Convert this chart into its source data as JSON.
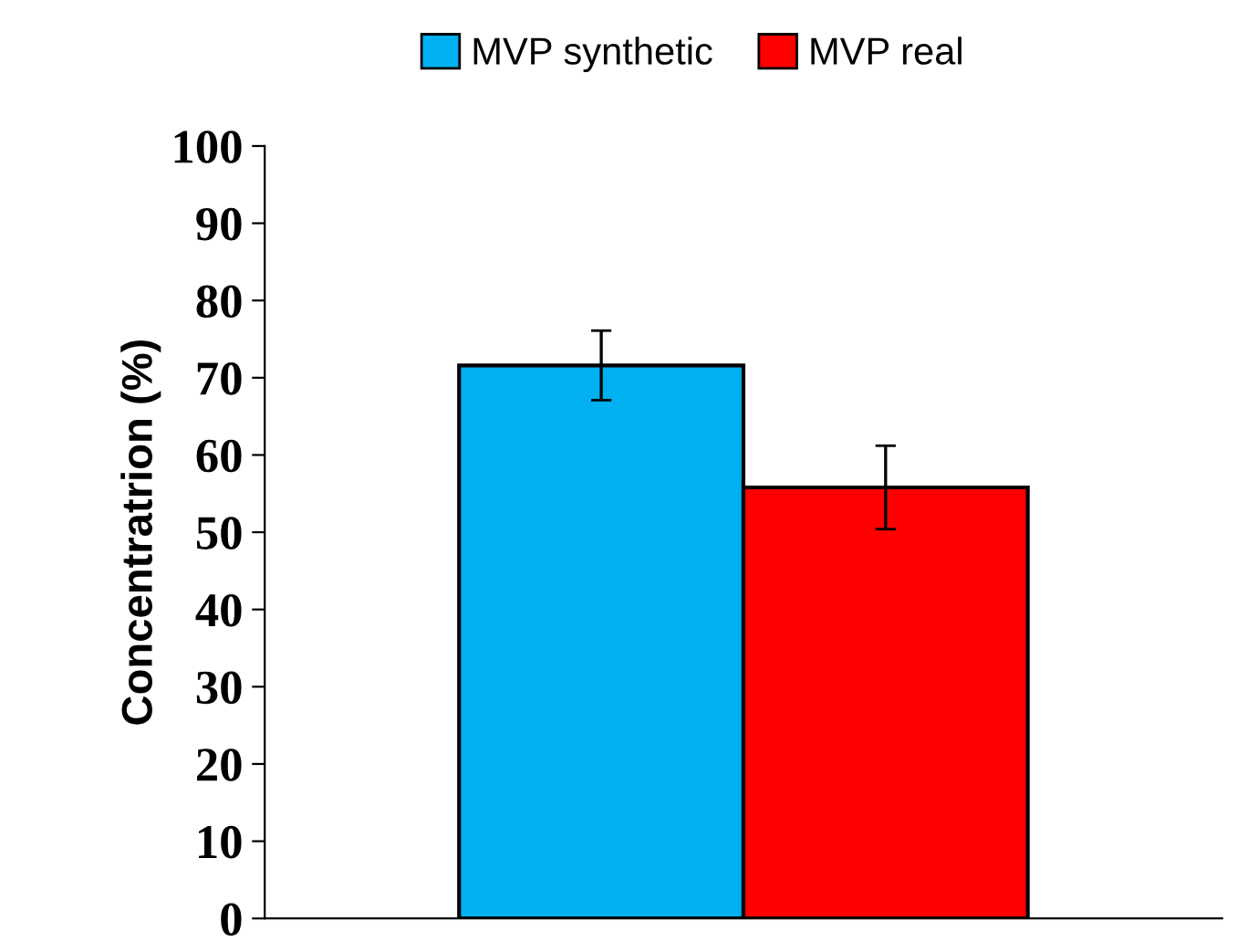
{
  "chart_data": {
    "type": "bar",
    "categories": [
      null
    ],
    "ylabel": "Concentratrion (%)",
    "series": [
      {
        "name": "MVP synthetic",
        "color": "#00b0f0",
        "values": [
          71.6
        ],
        "errors": [
          4.5
        ]
      },
      {
        "name": "MVP real",
        "color": "#ff0000",
        "values": [
          55.8
        ],
        "errors": [
          5.4
        ]
      }
    ],
    "ylim": [
      0,
      100
    ],
    "yticks": [
      0,
      10,
      20,
      30,
      40,
      50,
      60,
      70,
      80,
      90,
      100
    ],
    "grid": false,
    "legend": "top"
  }
}
